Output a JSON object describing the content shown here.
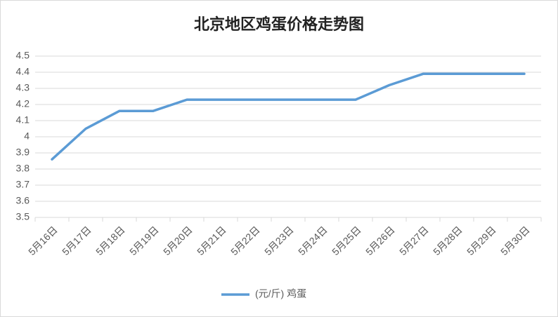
{
  "chart_data": {
    "type": "line",
    "title": "北京地区鸡蛋价格走势图",
    "categories": [
      "5月16日",
      "5月17日",
      "5月18日",
      "5月19日",
      "5月20日",
      "5月21日",
      "5月22日",
      "5月23日",
      "5月24日",
      "5月25日",
      "5月26日",
      "5月27日",
      "5月28日",
      "5月29日",
      "5月30日"
    ],
    "series": [
      {
        "name": "(元/斤) 鸡蛋",
        "color": "#5b9bd5",
        "values": [
          3.86,
          4.05,
          4.16,
          4.16,
          4.23,
          4.23,
          4.23,
          4.23,
          4.23,
          4.23,
          4.32,
          4.39,
          4.39,
          4.39,
          4.39
        ]
      }
    ],
    "ylim": [
      3.5,
      4.5
    ],
    "yticks": [
      3.5,
      3.6,
      3.7,
      3.8,
      3.9,
      4,
      4.1,
      4.2,
      4.3,
      4.4,
      4.5
    ],
    "grid": true,
    "legend": "bottom"
  }
}
